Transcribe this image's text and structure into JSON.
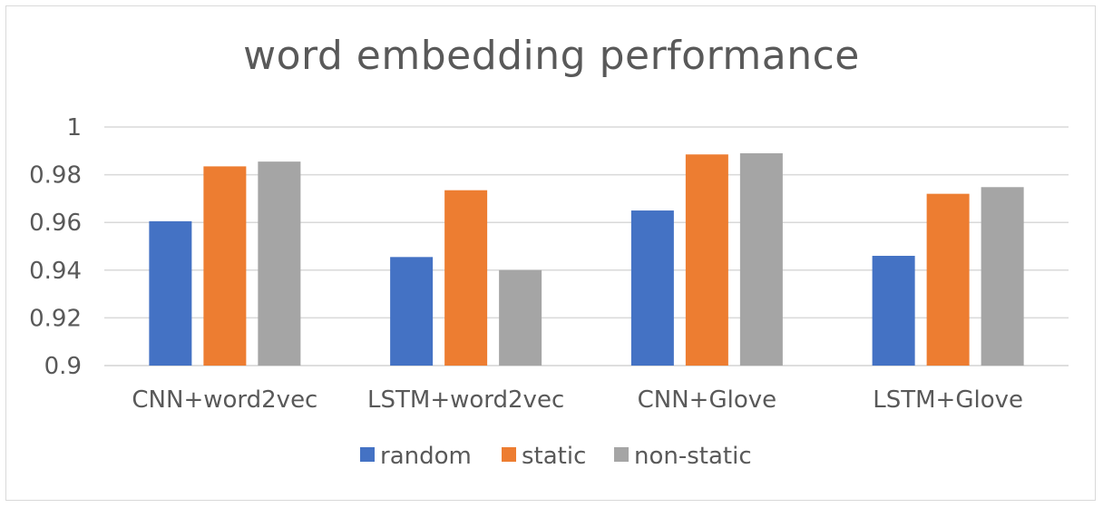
{
  "chart_data": {
    "type": "bar",
    "title": "word embedding performance",
    "xlabel": "",
    "ylabel": "",
    "categories": [
      "CNN+word2vec",
      "LSTM+word2vec",
      "CNN+Glove",
      "LSTM+Glove"
    ],
    "series": [
      {
        "name": "random",
        "color": "#4472C4",
        "values": [
          0.9605,
          0.9455,
          0.965,
          0.946
        ]
      },
      {
        "name": "static",
        "color": "#ED7D31",
        "values": [
          0.9835,
          0.9735,
          0.9885,
          0.972
        ]
      },
      {
        "name": "non-static",
        "color": "#A5A5A5",
        "values": [
          0.9855,
          0.94,
          0.989,
          0.9748
        ]
      }
    ],
    "ylim": [
      0.9,
      1.0
    ],
    "yticks": [
      "0.9",
      "0.92",
      "0.94",
      "0.96",
      "0.98",
      "1"
    ],
    "grid": true,
    "legend": "bottom"
  }
}
